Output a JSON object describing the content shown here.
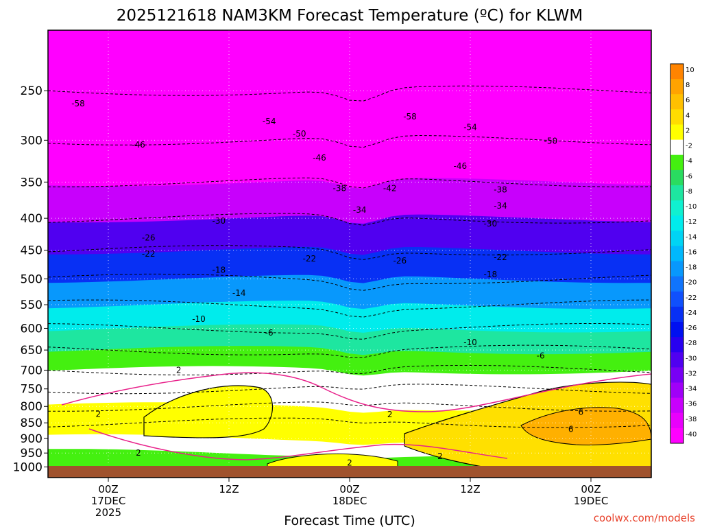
{
  "chart_data": {
    "type": "heatmap",
    "title": "2025121618 NAM3KM Forecast Temperature (ºC) for KLWM",
    "xlabel": "Forecast Time (UTC)",
    "ylabel": "",
    "credit": "coolwx.com/models",
    "y_scale": "log",
    "y_reversed": true,
    "ylim": [
      1040,
      200
    ],
    "y_ticks": [
      250,
      300,
      350,
      400,
      450,
      500,
      550,
      600,
      650,
      700,
      750,
      800,
      850,
      900,
      950,
      1000
    ],
    "y_tick_labels": [
      "250",
      "300",
      "350",
      "400",
      "450",
      "500",
      "550",
      "600",
      "650",
      "700",
      "750",
      "800",
      "850",
      "900",
      "950",
      "1000"
    ],
    "xlim": [
      "2025-12-16T18:00Z",
      "2025-12-19T06:00Z"
    ],
    "x_ticks": [
      {
        "time": "2025-12-17T00:00Z",
        "lines": [
          "00Z",
          "17DEC",
          "2025"
        ]
      },
      {
        "time": "2025-12-17T12:00Z",
        "lines": [
          "12Z"
        ]
      },
      {
        "time": "2025-12-18T00:00Z",
        "lines": [
          "00Z",
          "18DEC"
        ]
      },
      {
        "time": "2025-12-18T12:00Z",
        "lines": [
          "12Z"
        ]
      },
      {
        "time": "2025-12-19T00:00Z",
        "lines": [
          "00Z",
          "19DEC"
        ]
      }
    ],
    "grid": true,
    "legend": "right colorbar",
    "colorbar": {
      "ticks": [
        10,
        8,
        6,
        4,
        2,
        -2,
        -4,
        -6,
        -8,
        -10,
        -12,
        -14,
        -16,
        -18,
        -20,
        -22,
        -24,
        -26,
        -28,
        -30,
        -32,
        -34,
        -36,
        -38,
        -40
      ],
      "tick_labels": [
        "10",
        "8",
        "6",
        "4",
        "2",
        "-2",
        "-4",
        "-6",
        "-8",
        "-10",
        "-12",
        "-14",
        "-16",
        "-18",
        "-20",
        "-22",
        "-24",
        "-26",
        "-28",
        "-30",
        "-32",
        "-34",
        "-36",
        "-38",
        "-40"
      ],
      "colors": [
        "#ff8400",
        "#ffa300",
        "#ffc000",
        "#ffdd00",
        "#ffff00",
        "#ffffff",
        "#44f010",
        "#2adc60",
        "#1ee6a0",
        "#10f0d0",
        "#00ecec",
        "#00d4f4",
        "#00b8fc",
        "#0898fc",
        "#1074fc",
        "#1050fc",
        "#0830f4",
        "#0010f0",
        "#2800f0",
        "#5000f0",
        "#7800f4",
        "#a000f8",
        "#c800fc",
        "#e800fc",
        "#ff00ff"
      ]
    },
    "temperature_profile": {
      "pressure_hpa": [
        250,
        300,
        350,
        400,
        450,
        500,
        550,
        600,
        650,
        700,
        750,
        800,
        850,
        900,
        950,
        1000
      ],
      "temperature_c_at_17DEC_00Z": [
        -58,
        -46,
        -40,
        -32,
        -25,
        -20,
        -14,
        -9,
        -5,
        -1,
        1,
        2,
        3,
        1,
        -3,
        -4
      ]
    },
    "contour_labels": [
      {
        "time": "2025-12-16T21:00Z",
        "pressure": 262,
        "value": "-58"
      },
      {
        "time": "2025-12-17T16:00Z",
        "pressure": 280,
        "value": "-54"
      },
      {
        "time": "2025-12-17T19:00Z",
        "pressure": 293,
        "value": "-50"
      },
      {
        "time": "2025-12-17T03:00Z",
        "pressure": 305,
        "value": "-46"
      },
      {
        "time": "2025-12-17T21:00Z",
        "pressure": 320,
        "value": "-46"
      },
      {
        "time": "2025-12-17T23:00Z",
        "pressure": 358,
        "value": "-38"
      },
      {
        "time": "2025-12-18T04:00Z",
        "pressure": 358,
        "value": "-42"
      },
      {
        "time": "2025-12-18T01:00Z",
        "pressure": 388,
        "value": "-34"
      },
      {
        "time": "2025-12-17T11:00Z",
        "pressure": 404,
        "value": "-30"
      },
      {
        "time": "2025-12-17T04:00Z",
        "pressure": 430,
        "value": "-26"
      },
      {
        "time": "2025-12-17T04:00Z",
        "pressure": 456,
        "value": "-22"
      },
      {
        "time": "2025-12-17T20:00Z",
        "pressure": 464,
        "value": "-22"
      },
      {
        "time": "2025-12-18T05:00Z",
        "pressure": 468,
        "value": "-26"
      },
      {
        "time": "2025-12-17T11:00Z",
        "pressure": 484,
        "value": "-18"
      },
      {
        "time": "2025-12-17T13:00Z",
        "pressure": 527,
        "value": "-14"
      },
      {
        "time": "2025-12-17T09:00Z",
        "pressure": 580,
        "value": "-10"
      },
      {
        "time": "2025-12-17T16:00Z",
        "pressure": 610,
        "value": "-6"
      },
      {
        "time": "2025-12-18T06:00Z",
        "pressure": 275,
        "value": "-58"
      },
      {
        "time": "2025-12-18T12:00Z",
        "pressure": 286,
        "value": "-54"
      },
      {
        "time": "2025-12-18T20:00Z",
        "pressure": 301,
        "value": "-50"
      },
      {
        "time": "2025-12-18T11:00Z",
        "pressure": 330,
        "value": "-46"
      },
      {
        "time": "2025-12-18T15:00Z",
        "pressure": 360,
        "value": "-38"
      },
      {
        "time": "2025-12-18T15:00Z",
        "pressure": 382,
        "value": "-34"
      },
      {
        "time": "2025-12-18T14:00Z",
        "pressure": 408,
        "value": "-30"
      },
      {
        "time": "2025-12-18T15:00Z",
        "pressure": 462,
        "value": "-22"
      },
      {
        "time": "2025-12-18T14:00Z",
        "pressure": 492,
        "value": "-18"
      },
      {
        "time": "2025-12-18T12:00Z",
        "pressure": 632,
        "value": "-10"
      },
      {
        "time": "2025-12-18T19:00Z",
        "pressure": 664,
        "value": "-6"
      },
      {
        "time": "2025-12-17T07:00Z",
        "pressure": 700,
        "value": "2"
      },
      {
        "time": "2025-12-16T23:00Z",
        "pressure": 823,
        "value": "2"
      },
      {
        "time": "2025-12-17T03:00Z",
        "pressure": 949,
        "value": "2"
      },
      {
        "time": "2025-12-18T00:00Z",
        "pressure": 985,
        "value": "2"
      },
      {
        "time": "2025-12-18T04:00Z",
        "pressure": 824,
        "value": "2"
      },
      {
        "time": "2025-12-18T09:00Z",
        "pressure": 962,
        "value": "2"
      },
      {
        "time": "2025-12-18T23:00Z",
        "pressure": 817,
        "value": "6"
      },
      {
        "time": "2025-12-18T22:00Z",
        "pressure": 870,
        "value": "6"
      }
    ]
  }
}
